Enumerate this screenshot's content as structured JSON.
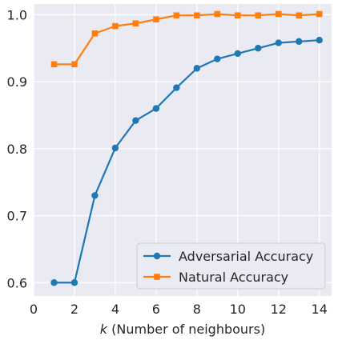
{
  "chart_data": {
    "type": "line",
    "xlabel_var": "k",
    "xlabel_rest": " (Number of neighbours)",
    "ylabel": "",
    "xlim": [
      0,
      14.6
    ],
    "ylim": [
      0.58,
      1.016
    ],
    "xticks": [
      0,
      2,
      4,
      6,
      8,
      10,
      12,
      14
    ],
    "yticks": [
      0.6,
      0.7,
      0.8,
      0.9,
      1.0
    ],
    "ytick_labels": [
      "0.6",
      "0.7",
      "0.8",
      "0.9",
      "1.0"
    ],
    "grid": true,
    "legend_placement": "bottom-right",
    "background": "#eaeaf2",
    "x": [
      1,
      2,
      3,
      4,
      5,
      6,
      7,
      8,
      9,
      10,
      11,
      12,
      13,
      14
    ],
    "series": [
      {
        "name": "Adversarial Accuracy",
        "color": "#1f77b4",
        "marker": "circle",
        "values": [
          0.6,
          0.6,
          0.73,
          0.801,
          0.842,
          0.86,
          0.891,
          0.92,
          0.934,
          0.942,
          0.95,
          0.958,
          0.96,
          0.962
        ]
      },
      {
        "name": "Natural Accuracy",
        "color": "#ff7f0e",
        "marker": "square",
        "values": [
          0.926,
          0.926,
          0.972,
          0.983,
          0.987,
          0.993,
          0.999,
          0.999,
          1.001,
          0.999,
          0.999,
          1.001,
          0.999,
          1.001
        ]
      }
    ]
  }
}
